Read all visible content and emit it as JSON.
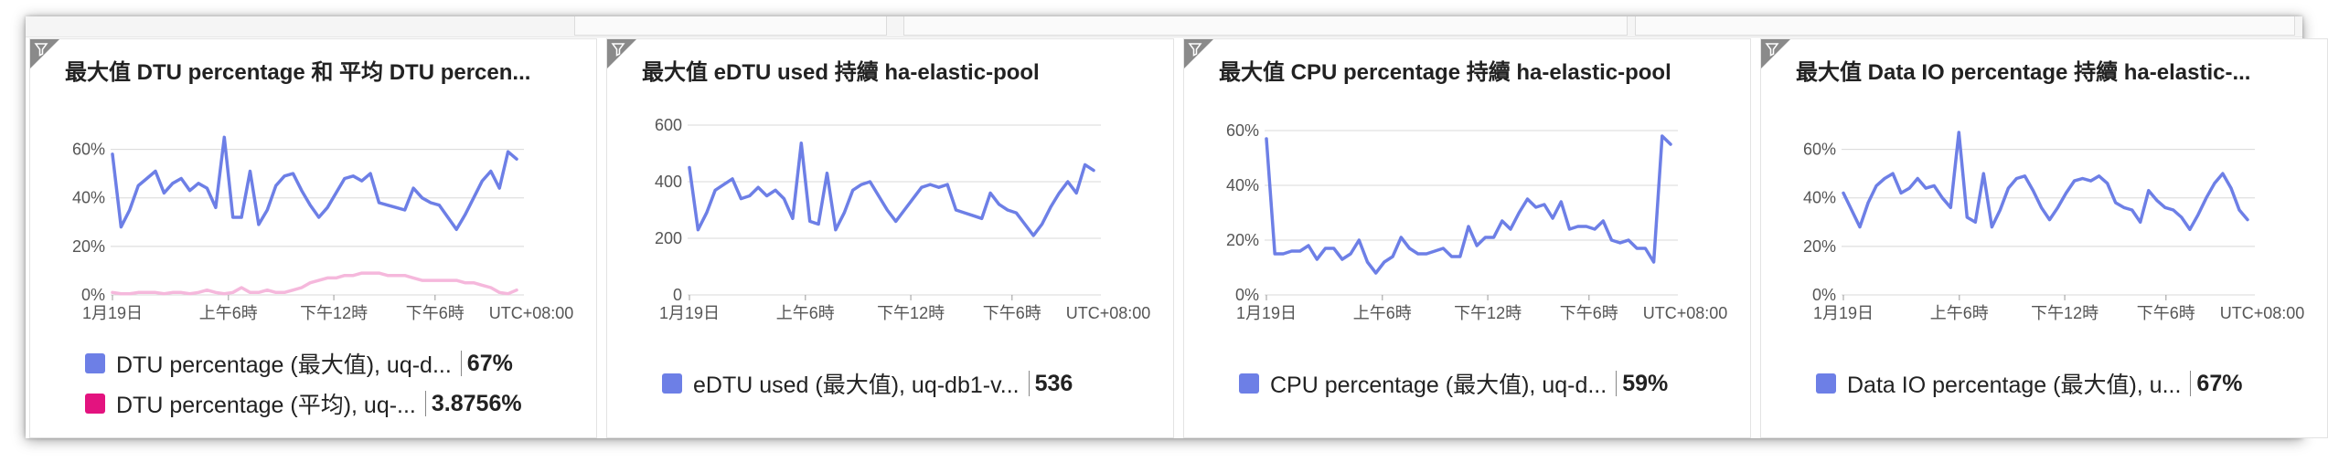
{
  "colors": {
    "blue": "#6d7fe6",
    "pink_line": "#f5b8dc",
    "pink_swatch": "#e3137f",
    "grid": "#d8d8d8",
    "axis_text": "#555555"
  },
  "tiles": [
    {
      "title": "最大值 DTU percentage 和 平均 DTU percen...",
      "legend": [
        {
          "label": "DTU percentage (最大值), uq-d...",
          "value": "67%"
        },
        {
          "label": "DTU percentage (平均), uq-...",
          "value": "3.8756%"
        }
      ]
    },
    {
      "title": "最大值 eDTU used 持續 ha-elastic-pool",
      "legend": [
        {
          "label": "eDTU used (最大值), uq-db1-v...",
          "value": "536"
        }
      ]
    },
    {
      "title": "最大值 CPU percentage 持續 ha-elastic-pool",
      "legend": [
        {
          "label": "CPU percentage (最大值), uq-d...",
          "value": "59%"
        }
      ]
    },
    {
      "title": "最大值 Data IO percentage 持續 ha-elastic-...",
      "legend": [
        {
          "label": "Data IO percentage (最大值), u...",
          "value": "67%"
        }
      ]
    }
  ],
  "chart_data": [
    {
      "type": "line",
      "title": "最大值 DTU percentage 和 平均 DTU percen...",
      "x_ticks": [
        "1月19日",
        "上午6時",
        "下午12時",
        "下午6時",
        "UTC+08:00"
      ],
      "y_ticks": [
        "0%",
        "20%",
        "40%",
        "60%"
      ],
      "ylim": [
        0,
        70
      ],
      "grid": true,
      "series": [
        {
          "name": "DTU percentage (最大值), uq-d...",
          "color": "#6d7fe6",
          "values": [
            58,
            28,
            35,
            45,
            48,
            51,
            42,
            46,
            48,
            43,
            46,
            44,
            36,
            65,
            32,
            32,
            51,
            29,
            35,
            45,
            49,
            50,
            43,
            37,
            32,
            36,
            42,
            48,
            49,
            47,
            50,
            38,
            37,
            36,
            35,
            44,
            40,
            38,
            37,
            32,
            27,
            33,
            40,
            47,
            51,
            44,
            59,
            56
          ]
        },
        {
          "name": "DTU percentage (平均), uq-...",
          "color": "#f5b8dc",
          "values": [
            1,
            0.5,
            0.5,
            1,
            1,
            1,
            0.5,
            1,
            1,
            0.5,
            1,
            2,
            1,
            0.5,
            1,
            3,
            1,
            1,
            2,
            1,
            1,
            2,
            3,
            5,
            6,
            7,
            7,
            8,
            8,
            9,
            9,
            9,
            8,
            8,
            8,
            7,
            6,
            6,
            6,
            6,
            6,
            5,
            5,
            4,
            3,
            1,
            0.5,
            2
          ]
        }
      ]
    },
    {
      "type": "line",
      "title": "最大值 eDTU used 持續 ha-elastic-pool",
      "x_ticks": [
        "1月19日",
        "上午6時",
        "下午12時",
        "下午6時",
        "UTC+08:00"
      ],
      "y_ticks": [
        "0",
        "200",
        "400",
        "600"
      ],
      "ylim": [
        0,
        600
      ],
      "grid": true,
      "series": [
        {
          "name": "eDTU used (最大值), uq-db1-v...",
          "color": "#6d7fe6",
          "values": [
            450,
            230,
            290,
            370,
            390,
            410,
            340,
            350,
            380,
            350,
            370,
            340,
            270,
            536,
            260,
            250,
            430,
            230,
            290,
            370,
            390,
            400,
            350,
            300,
            260,
            300,
            340,
            380,
            390,
            380,
            390,
            300,
            290,
            280,
            270,
            360,
            320,
            300,
            290,
            250,
            210,
            250,
            310,
            360,
            400,
            360,
            460,
            440
          ]
        }
      ]
    },
    {
      "type": "line",
      "title": "最大值 CPU percentage 持續 ha-elastic-pool",
      "x_ticks": [
        "1月19日",
        "上午6時",
        "下午12時",
        "下午6時",
        "UTC+08:00"
      ],
      "y_ticks": [
        "0%",
        "20%",
        "40%",
        "60%"
      ],
      "ylim": [
        0,
        62
      ],
      "grid": true,
      "series": [
        {
          "name": "CPU percentage (最大值), uq-d...",
          "color": "#6d7fe6",
          "values": [
            57,
            15,
            15,
            16,
            16,
            18,
            13,
            17,
            17,
            13,
            15,
            20,
            12,
            8,
            12,
            14,
            21,
            17,
            15,
            15,
            16,
            17,
            14,
            14,
            25,
            18,
            21,
            21,
            27,
            24,
            30,
            35,
            32,
            33,
            28,
            34,
            24,
            25,
            25,
            24,
            27,
            20,
            19,
            20,
            17,
            17,
            12,
            58,
            55
          ]
        }
      ]
    },
    {
      "type": "line",
      "title": "最大值 Data IO percentage 持續 ha-elastic-...",
      "x_ticks": [
        "1月19日",
        "上午6時",
        "下午12時",
        "下午6時",
        "UTC+08:00"
      ],
      "y_ticks": [
        "0%",
        "20%",
        "40%",
        "60%"
      ],
      "ylim": [
        0,
        70
      ],
      "grid": true,
      "series": [
        {
          "name": "Data IO percentage (最大值), u...",
          "color": "#6d7fe6",
          "values": [
            42,
            35,
            28,
            38,
            45,
            48,
            50,
            42,
            44,
            48,
            44,
            45,
            40,
            36,
            67,
            32,
            30,
            50,
            28,
            35,
            44,
            48,
            49,
            43,
            36,
            31,
            36,
            42,
            47,
            48,
            47,
            49,
            46,
            38,
            36,
            35,
            30,
            43,
            39,
            36,
            35,
            32,
            27,
            33,
            40,
            46,
            50,
            44,
            35,
            31
          ]
        }
      ]
    }
  ]
}
